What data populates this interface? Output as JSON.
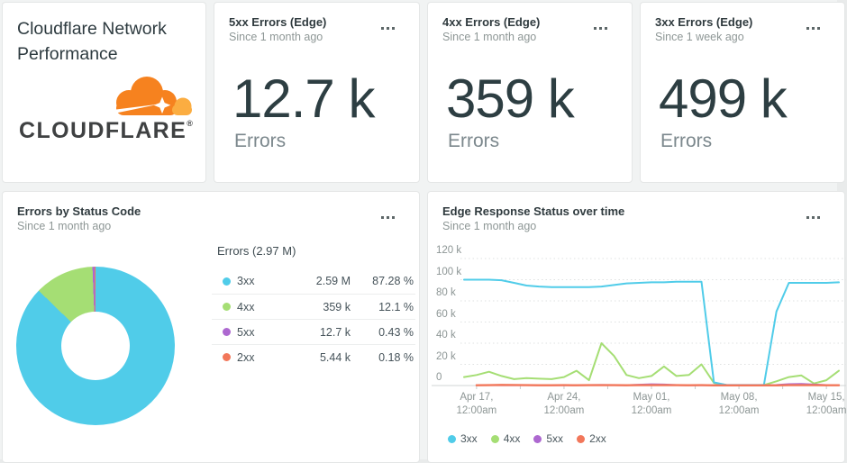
{
  "brand_card": {
    "title": "Cloudflare Network Performance",
    "logo_text": "CLOUDFLARE",
    "logo_reg": "®",
    "logo_orange": "#f6821f",
    "logo_light_orange": "#fbad41"
  },
  "billboards": [
    {
      "title": "5xx Errors (Edge)",
      "subtitle": "Since 1 month ago",
      "value": "12.7 k",
      "unit": "Errors"
    },
    {
      "title": "4xx Errors (Edge)",
      "subtitle": "Since 1 month ago",
      "value": "359 k",
      "unit": "Errors"
    },
    {
      "title": "3xx Errors (Edge)",
      "subtitle": "Since 1 week ago",
      "value": "499 k",
      "unit": "Errors"
    }
  ],
  "pie_card": {
    "title": "Errors by Status Code",
    "subtitle": "Since 1 month ago",
    "chart_data": {
      "type": "pie",
      "title": "Errors by Status Code",
      "total_label": "Errors (2.97 M)",
      "donut": true,
      "start_angle_deg": 0,
      "slices": [
        {
          "label": "3xx",
          "value": "2.59 M",
          "pct": 87.28,
          "pct_text": "87.28 %",
          "color": "#50cce9"
        },
        {
          "label": "4xx",
          "value": "359 k",
          "pct": 12.1,
          "pct_text": "12.1 %",
          "color": "#a5de74"
        },
        {
          "label": "5xx",
          "value": "12.7 k",
          "pct": 0.43,
          "pct_text": "0.43 %",
          "color": "#ad68d0"
        },
        {
          "label": "2xx",
          "value": "5.44 k",
          "pct": 0.18,
          "pct_text": "0.18 %",
          "color": "#f2775a"
        }
      ]
    }
  },
  "timeseries_card": {
    "title": "Edge Response Status over time",
    "subtitle": "Since 1 month ago",
    "chart_data": {
      "type": "line",
      "title": "Edge Response Status over time",
      "grid": "dotted horizontal",
      "legend_position": "bottom",
      "ylim": [
        0,
        120000
      ],
      "value_unit": "errors, values in thousands (k)",
      "ylabel_ticks": [
        "120 k",
        "100 k",
        "80 k",
        "60 k",
        "40 k",
        "20 k",
        "0"
      ],
      "x_range": [
        "Apr 16",
        "May 16"
      ],
      "point_interval": "1 day",
      "x_ticks": [
        {
          "day": 1,
          "label": "Apr 17,\n12:00am"
        },
        {
          "day": 8,
          "label": "Apr 24,\n12:00am"
        },
        {
          "day": 15,
          "label": "May 01,\n12:00am"
        },
        {
          "day": 22,
          "label": "May 08,\n12:00am"
        },
        {
          "day": 29,
          "label": "May 15,\n12:00am"
        }
      ],
      "series": [
        {
          "name": "3xx",
          "color": "#50cce9",
          "values": [
            100,
            100,
            100,
            99.5,
            97,
            94.5,
            93.5,
            93,
            93,
            93,
            93,
            93.5,
            95,
            96.5,
            97,
            97.5,
            97.5,
            98,
            98,
            98,
            3,
            0.5,
            0.5,
            0.5,
            0.5,
            70,
            97,
            97,
            97,
            97,
            97.5
          ]
        },
        {
          "name": "4xx",
          "color": "#a5de74",
          "values": [
            8,
            10,
            13,
            9,
            6,
            7,
            6.5,
            6,
            8,
            14,
            5,
            40,
            28,
            10,
            7,
            9,
            18,
            9,
            10,
            20,
            2.5,
            0.5,
            0.3,
            0.3,
            0.5,
            4,
            8,
            9.5,
            2,
            5,
            14
          ]
        },
        {
          "name": "5xx",
          "color": "#ad68d0",
          "values": [
            null,
            0.4,
            0.4,
            0.3,
            0.3,
            0.4,
            0.3,
            0.3,
            0.3,
            0.3,
            0.4,
            0.5,
            0.4,
            0.3,
            0.8,
            1.2,
            0.9,
            0.4,
            0.3,
            0.3,
            0.3,
            0.2,
            0.2,
            0.2,
            0.2,
            0.5,
            1.3,
            1.5,
            0.9,
            0.4,
            0.4
          ]
        },
        {
          "name": "2xx",
          "color": "#f2775a",
          "values": [
            null,
            0.25,
            0.3,
            0.6,
            0.5,
            0.3,
            0.25,
            0.25,
            0.3,
            0.25,
            0.3,
            0.35,
            0.3,
            0.25,
            0.3,
            0.3,
            0.3,
            0.3,
            0.25,
            0.3,
            0.2,
            0.15,
            0.15,
            0.15,
            0.15,
            0.2,
            0.3,
            0.35,
            0.3,
            0.25,
            0.25
          ]
        }
      ]
    }
  }
}
